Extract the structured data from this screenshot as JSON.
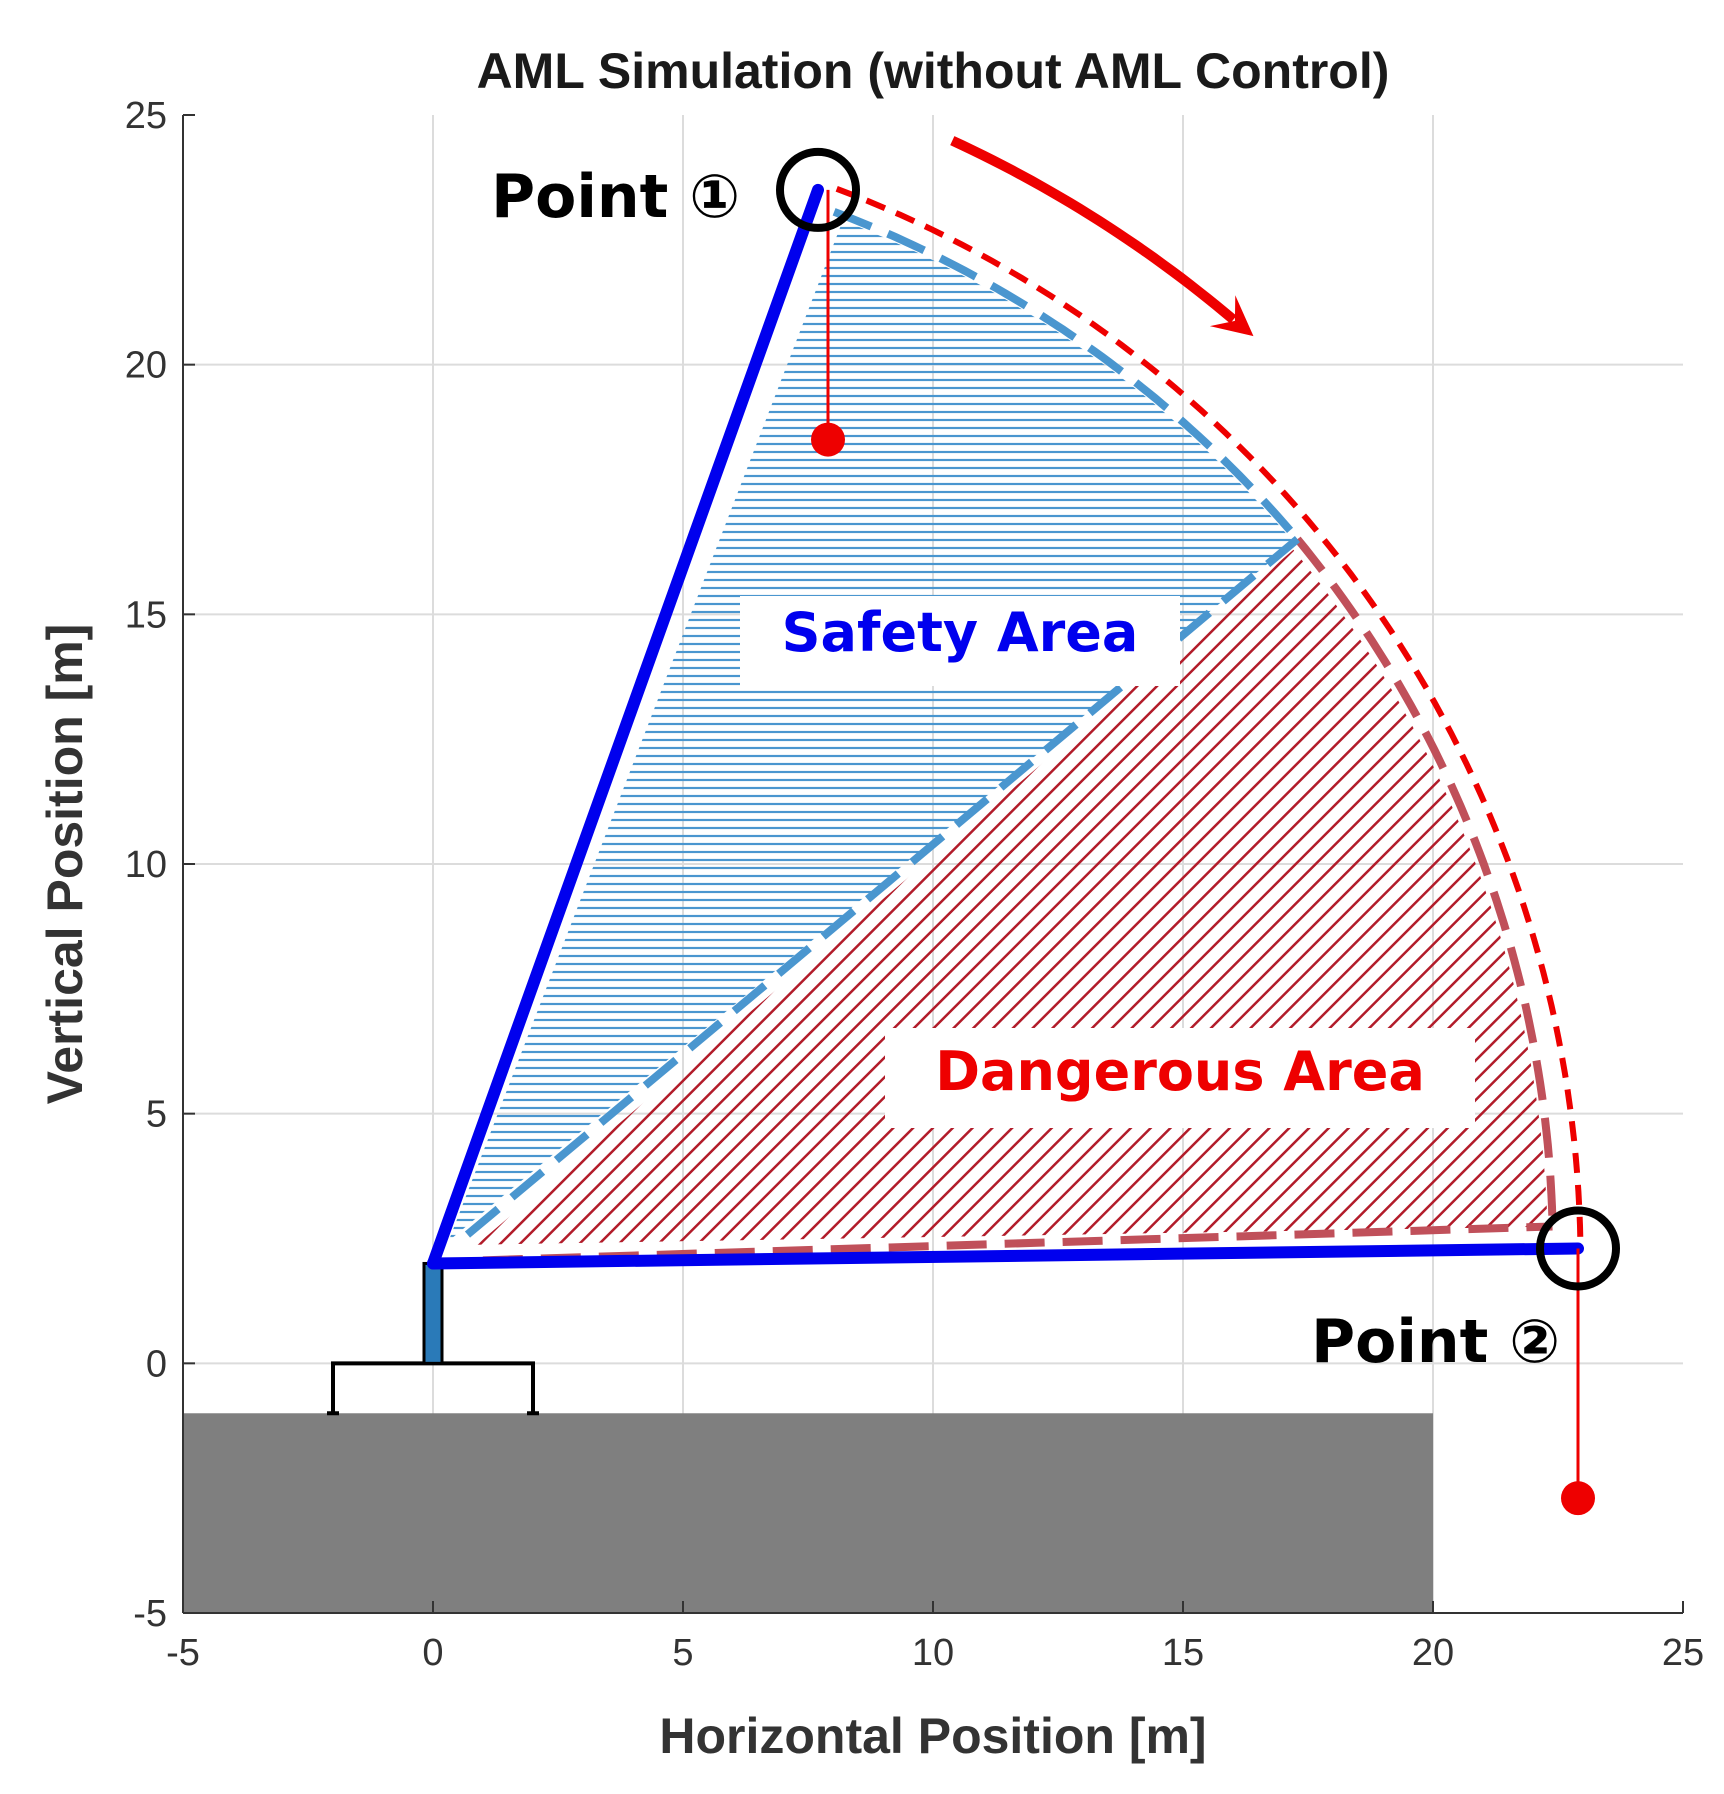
{
  "chart_data": {
    "type": "line",
    "title": "AML Simulation (without AML Control)",
    "xlabel": "Horizontal Position [m]",
    "ylabel": "Vertical Position [m]",
    "xlim": [
      -5,
      25
    ],
    "ylim": [
      -5,
      25
    ],
    "xticks": [
      "-5",
      "0",
      "5",
      "10",
      "15",
      "20",
      "25"
    ],
    "yticks": [
      "-5",
      "0",
      "5",
      "10",
      "15",
      "20",
      "25"
    ],
    "grid": true,
    "colors": {
      "boom": "#0000ee",
      "safety": "#4a96cf",
      "danger": "#b21c2a",
      "rope": "#ee0000",
      "ground": "#7f7f7f",
      "marker": "#000000"
    },
    "boom_pivot": [
      0,
      2
    ],
    "mast": {
      "x": 0,
      "y_from": 0,
      "y_to": 2
    },
    "base_frame": {
      "x_from": -2,
      "x_to": 2,
      "y_top": 0,
      "y_bottom": -1
    },
    "ground": {
      "x_from": -5,
      "x_to": 20,
      "y_from": -5,
      "y_to": -1
    },
    "boom_positions": [
      {
        "label": "Point ①",
        "tip": [
          7.7,
          23.5
        ],
        "hook": [
          7.9,
          18.5
        ]
      },
      {
        "label": "Point ②",
        "tip": [
          22.9,
          2.3
        ],
        "hook": [
          22.9,
          -2.7
        ]
      }
    ],
    "annotations": {
      "point1": "Point ①",
      "point2": "Point ②",
      "safety_area": "Safety Area",
      "dangerous_area": "Dangerous Area"
    },
    "boundary_angle_deg": 40,
    "sweep_direction": "clockwise"
  }
}
